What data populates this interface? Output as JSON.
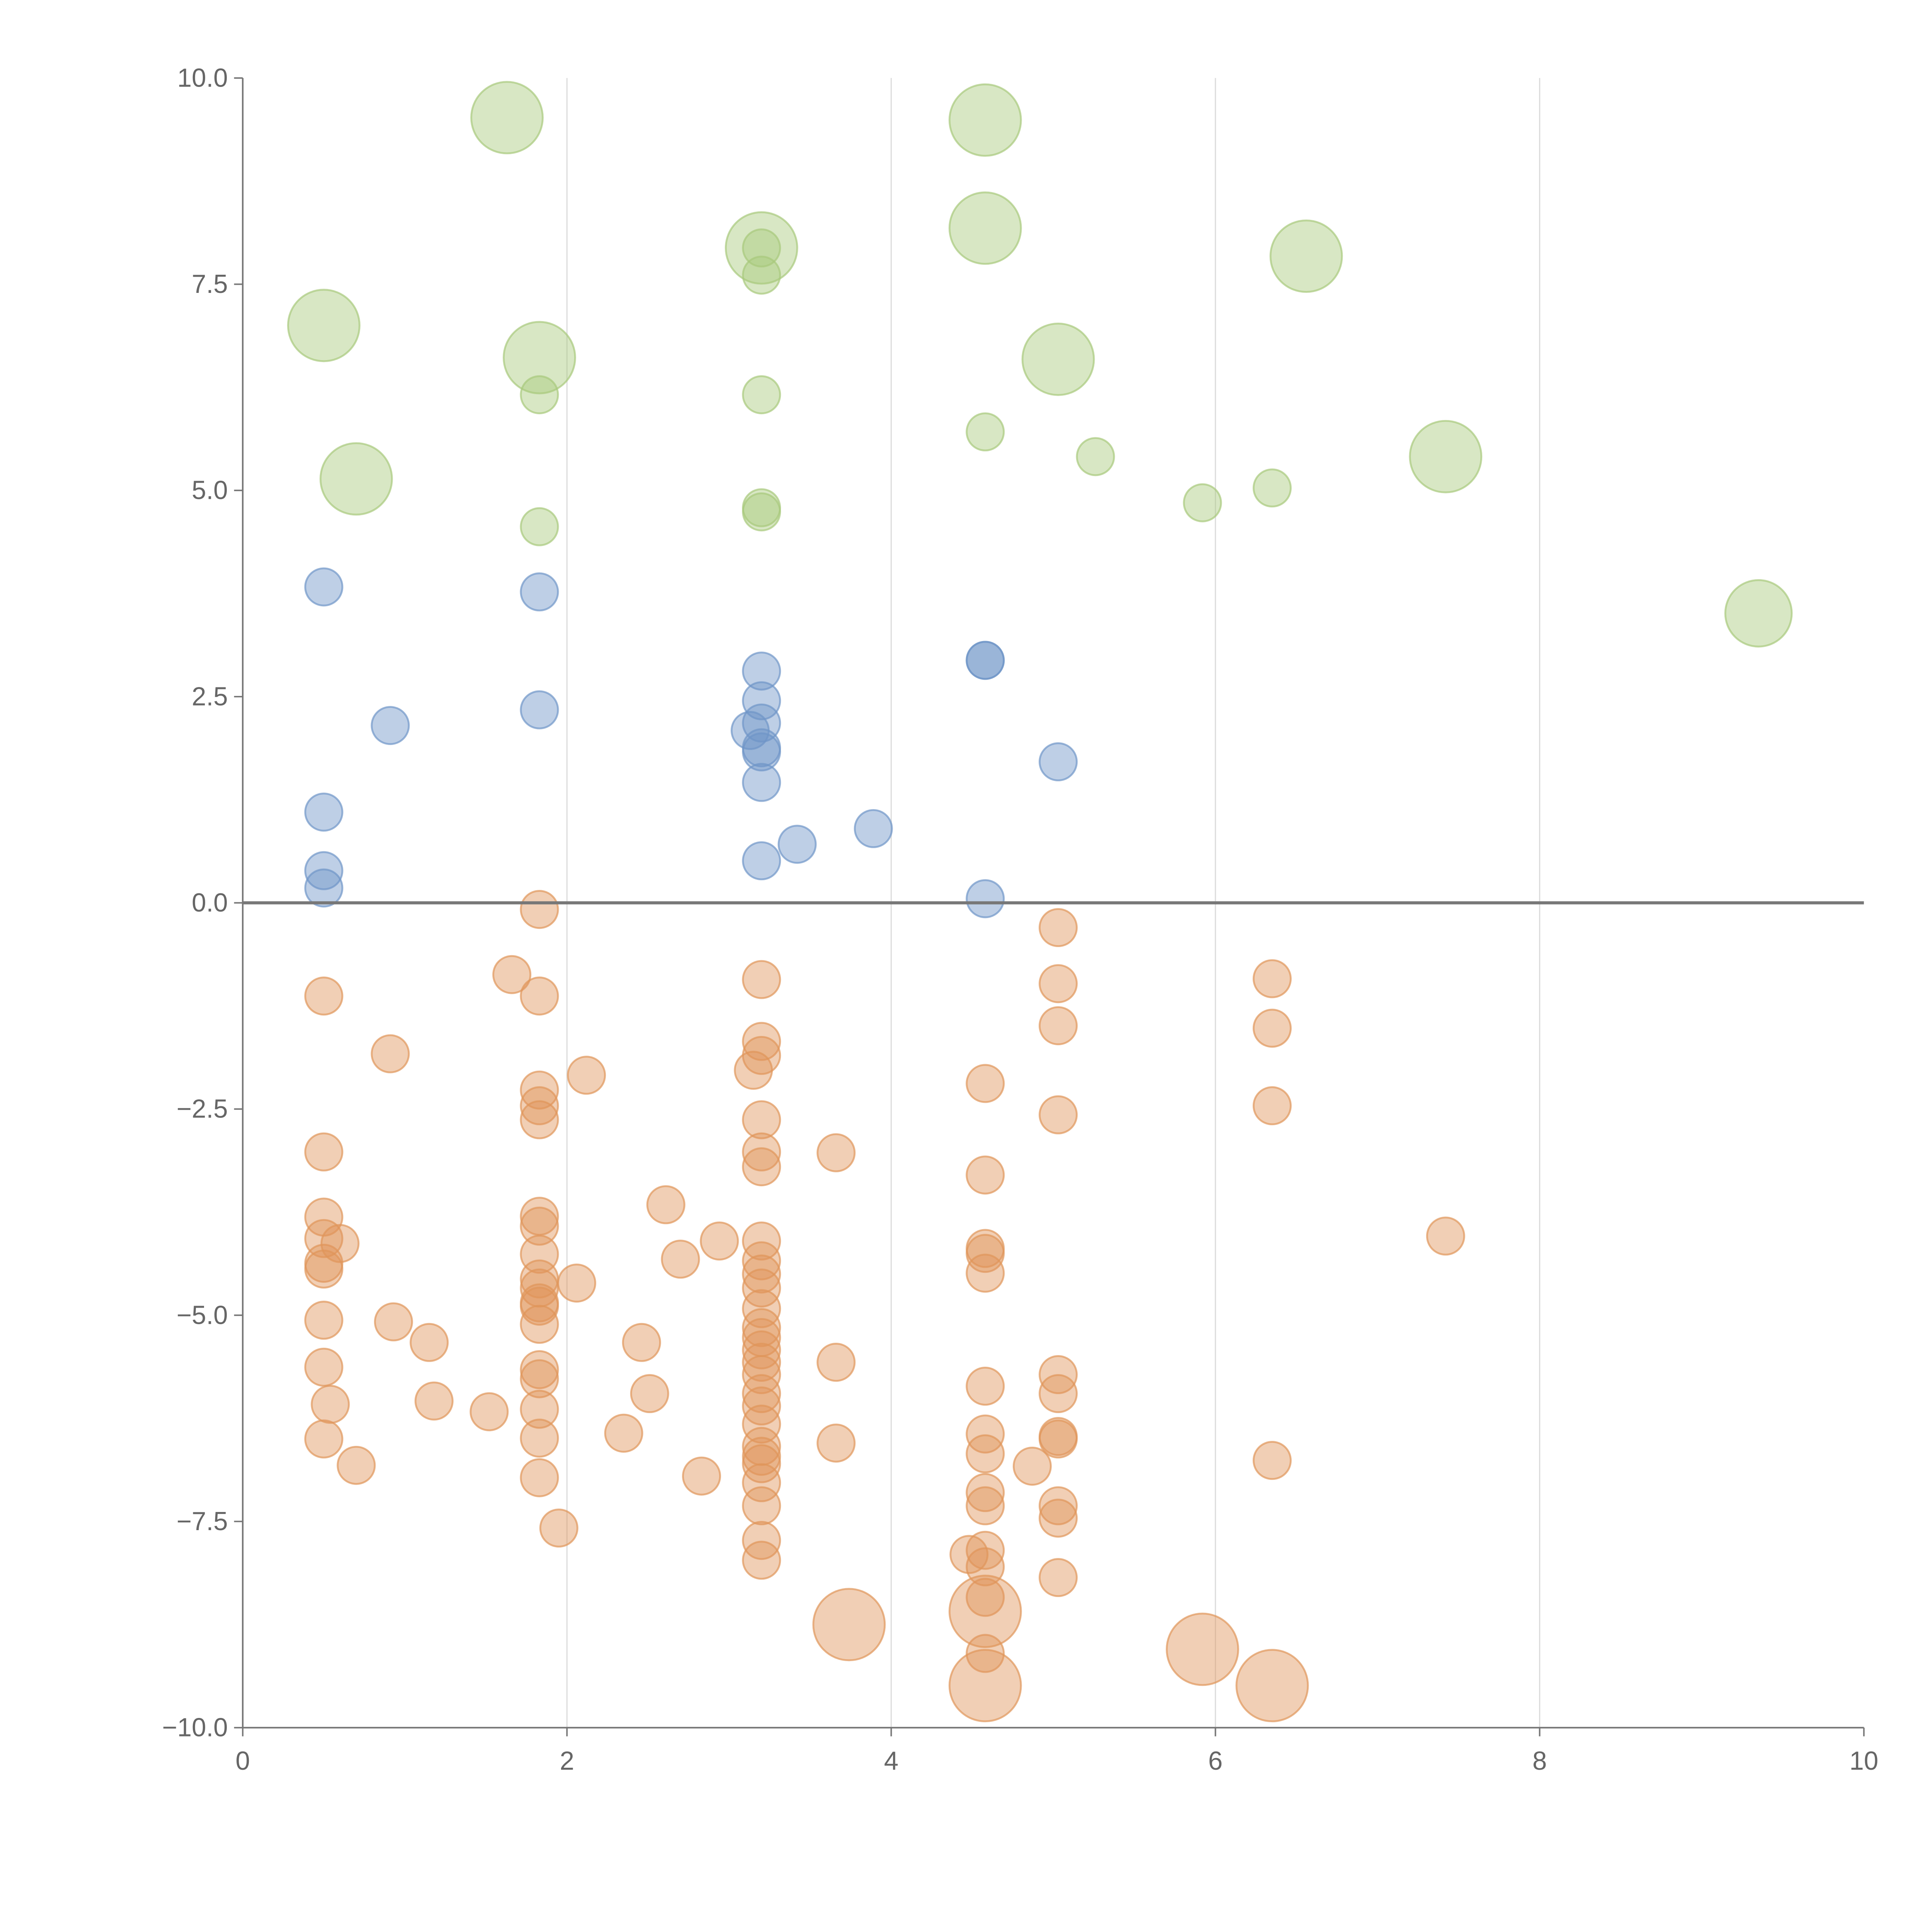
{
  "chart_data": {
    "type": "scatter",
    "title": "",
    "xlabel": "",
    "ylabel": "",
    "xlim": [
      0,
      10
    ],
    "ylim": [
      -10,
      10
    ],
    "grid": "vertical lines at x ticks",
    "legend": "none",
    "x_ticks": [
      "0",
      "2",
      "4",
      "6",
      "8",
      "10"
    ],
    "x_tick_values": [
      0,
      2,
      4,
      6,
      8,
      10
    ],
    "y_ticks": [
      "10.0",
      "7.5",
      "5.0",
      "2.5",
      "0.0",
      "−2.5",
      "−5.0",
      "−7.5",
      "−10.0"
    ],
    "y_tick_values": [
      10,
      7.5,
      5,
      2.5,
      0,
      -2.5,
      -5,
      -7.5,
      -10
    ],
    "point_format": "[x, y, relative_size]",
    "series": [
      {
        "name": "green",
        "color": "#a8c97c",
        "points": [
          [
            1.63,
            9.52,
            3.7
          ],
          [
            4.58,
            9.49,
            3.7
          ],
          [
            3.2,
            7.94,
            3.7
          ],
          [
            4.58,
            8.18,
            3.7
          ],
          [
            6.56,
            7.84,
            3.7
          ],
          [
            0.5,
            7.0,
            3.7
          ],
          [
            1.83,
            6.61,
            3.7
          ],
          [
            5.03,
            6.59,
            3.7
          ],
          [
            0.7,
            5.14,
            3.7
          ],
          [
            7.42,
            5.41,
            3.7
          ],
          [
            9.35,
            3.51,
            3.2
          ],
          [
            3.2,
            7.94,
            1
          ],
          [
            3.2,
            7.61,
            1
          ],
          [
            1.83,
            6.16,
            1
          ],
          [
            3.2,
            6.16,
            1
          ],
          [
            4.58,
            5.71,
            1
          ],
          [
            5.26,
            5.41,
            1
          ],
          [
            5.92,
            4.85,
            1
          ],
          [
            6.35,
            5.03,
            1
          ],
          [
            1.83,
            4.56,
            1
          ],
          [
            3.2,
            4.79,
            1
          ],
          [
            3.2,
            4.74,
            1
          ]
        ]
      },
      {
        "name": "blue",
        "color": "#6f95c8",
        "points": [
          [
            0.5,
            3.83,
            1
          ],
          [
            1.83,
            3.77,
            1
          ],
          [
            0.91,
            2.15,
            1
          ],
          [
            1.83,
            2.34,
            1
          ],
          [
            3.2,
            2.81,
            1
          ],
          [
            3.2,
            2.45,
            1
          ],
          [
            3.2,
            2.18,
            1
          ],
          [
            3.13,
            2.09,
            1
          ],
          [
            3.2,
            1.88,
            1
          ],
          [
            3.2,
            1.83,
            1
          ],
          [
            3.2,
            1.46,
            1
          ],
          [
            3.2,
            0.51,
            1
          ],
          [
            3.42,
            0.71,
            1
          ],
          [
            3.89,
            0.9,
            1
          ],
          [
            4.58,
            2.94,
            1
          ],
          [
            4.58,
            2.94,
            1
          ],
          [
            5.03,
            1.71,
            1
          ],
          [
            0.5,
            1.1,
            1
          ],
          [
            0.5,
            0.39,
            1
          ],
          [
            0.5,
            0.18,
            1
          ],
          [
            4.58,
            0.05,
            1
          ]
        ]
      },
      {
        "name": "orange",
        "color": "#e0955a",
        "points": [
          [
            0.5,
            -1.13,
            1
          ],
          [
            0.5,
            -3.02,
            1
          ],
          [
            0.5,
            -3.81,
            1
          ],
          [
            0.5,
            -4.07,
            1
          ],
          [
            0.5,
            -4.37,
            1
          ],
          [
            0.5,
            -4.44,
            1
          ],
          [
            0.5,
            -5.06,
            1
          ],
          [
            0.5,
            -5.63,
            1
          ],
          [
            0.5,
            -6.5,
            1
          ],
          [
            0.6,
            -4.13,
            1
          ],
          [
            0.54,
            -6.08,
            1
          ],
          [
            0.7,
            -6.82,
            1
          ],
          [
            0.91,
            -1.83,
            1
          ],
          [
            0.93,
            -5.08,
            1
          ],
          [
            1.15,
            -5.33,
            1
          ],
          [
            1.18,
            -6.04,
            1
          ],
          [
            1.52,
            -6.17,
            1
          ],
          [
            1.66,
            -0.87,
            1
          ],
          [
            1.83,
            -0.08,
            1
          ],
          [
            1.83,
            -1.13,
            1
          ],
          [
            1.83,
            -2.27,
            1
          ],
          [
            1.83,
            -2.46,
            1
          ],
          [
            1.83,
            -2.63,
            1
          ],
          [
            1.83,
            -3.8,
            1
          ],
          [
            1.83,
            -3.92,
            1
          ],
          [
            1.83,
            -4.26,
            1
          ],
          [
            1.83,
            -4.56,
            1
          ],
          [
            1.83,
            -4.67,
            1
          ],
          [
            1.83,
            -4.85,
            1
          ],
          [
            1.83,
            -4.89,
            1
          ],
          [
            1.83,
            -5.11,
            1
          ],
          [
            1.83,
            -5.66,
            1
          ],
          [
            1.83,
            -5.77,
            1
          ],
          [
            1.83,
            -6.14,
            1
          ],
          [
            1.83,
            -6.49,
            1
          ],
          [
            1.83,
            -6.97,
            1
          ],
          [
            1.95,
            -7.58,
            1
          ],
          [
            2.06,
            -4.61,
            1
          ],
          [
            2.12,
            -2.09,
            1
          ],
          [
            2.35,
            -6.43,
            1
          ],
          [
            2.46,
            -5.33,
            1
          ],
          [
            2.51,
            -5.95,
            1
          ],
          [
            2.61,
            -3.66,
            1
          ],
          [
            2.7,
            -4.32,
            1
          ],
          [
            2.83,
            -6.95,
            1
          ],
          [
            2.94,
            -4.1,
            1
          ],
          [
            3.2,
            -0.93,
            1
          ],
          [
            3.2,
            -1.68,
            1
          ],
          [
            3.2,
            -1.85,
            1
          ],
          [
            3.2,
            -2.63,
            1
          ],
          [
            3.2,
            -3.02,
            1
          ],
          [
            3.2,
            -3.2,
            1
          ],
          [
            3.2,
            -4.1,
            1
          ],
          [
            3.2,
            -4.34,
            1
          ],
          [
            3.2,
            -4.5,
            1
          ],
          [
            3.2,
            -4.67,
            1
          ],
          [
            3.2,
            -4.92,
            1
          ],
          [
            3.2,
            -5.15,
            1
          ],
          [
            3.2,
            -5.27,
            1
          ],
          [
            3.2,
            -5.42,
            1
          ],
          [
            3.2,
            -5.57,
            1
          ],
          [
            3.2,
            -5.72,
            1
          ],
          [
            3.2,
            -5.95,
            1
          ],
          [
            3.2,
            -6.1,
            1
          ],
          [
            3.2,
            -6.32,
            1
          ],
          [
            3.2,
            -6.59,
            1
          ],
          [
            3.2,
            -6.71,
            1
          ],
          [
            3.2,
            -6.8,
            1
          ],
          [
            3.2,
            -7.03,
            1
          ],
          [
            3.2,
            -7.31,
            1
          ],
          [
            3.2,
            -7.73,
            1
          ],
          [
            3.2,
            -7.97,
            1
          ],
          [
            3.15,
            -2.03,
            1
          ],
          [
            3.66,
            -3.03,
            1
          ],
          [
            3.66,
            -5.57,
            1
          ],
          [
            3.66,
            -6.55,
            1
          ],
          [
            3.74,
            -8.75,
            3.7
          ],
          [
            4.58,
            -2.19,
            1
          ],
          [
            4.58,
            -3.3,
            1
          ],
          [
            4.58,
            -4.19,
            1
          ],
          [
            4.58,
            -4.25,
            1
          ],
          [
            4.58,
            -4.49,
            1
          ],
          [
            4.58,
            -5.86,
            1
          ],
          [
            4.58,
            -6.44,
            1
          ],
          [
            4.58,
            -6.68,
            1
          ],
          [
            4.58,
            -7.15,
            1
          ],
          [
            4.58,
            -7.31,
            1
          ],
          [
            4.58,
            -7.85,
            1
          ],
          [
            4.58,
            -8.05,
            1
          ],
          [
            4.58,
            -8.42,
            1
          ],
          [
            4.58,
            -9.1,
            1
          ],
          [
            4.48,
            -7.9,
            1
          ],
          [
            4.58,
            -8.59,
            3.7
          ],
          [
            4.58,
            -9.49,
            3.7
          ],
          [
            4.87,
            -6.83,
            1
          ],
          [
            5.03,
            -0.3,
            1
          ],
          [
            5.03,
            -0.98,
            1
          ],
          [
            5.03,
            -1.49,
            1
          ],
          [
            5.03,
            -2.57,
            1
          ],
          [
            5.03,
            -5.72,
            1
          ],
          [
            5.03,
            -5.95,
            1
          ],
          [
            5.03,
            -6.47,
            1
          ],
          [
            5.03,
            -6.5,
            1
          ],
          [
            5.03,
            -7.31,
            1
          ],
          [
            5.03,
            -7.46,
            1
          ],
          [
            5.03,
            -8.18,
            1
          ],
          [
            5.92,
            -9.05,
            3.7
          ],
          [
            6.35,
            -0.92,
            1
          ],
          [
            6.35,
            -1.52,
            1
          ],
          [
            6.35,
            -2.46,
            1
          ],
          [
            6.35,
            -6.76,
            1
          ],
          [
            6.35,
            -9.49,
            3.7
          ],
          [
            7.42,
            -4.04,
            1
          ]
        ]
      }
    ]
  }
}
